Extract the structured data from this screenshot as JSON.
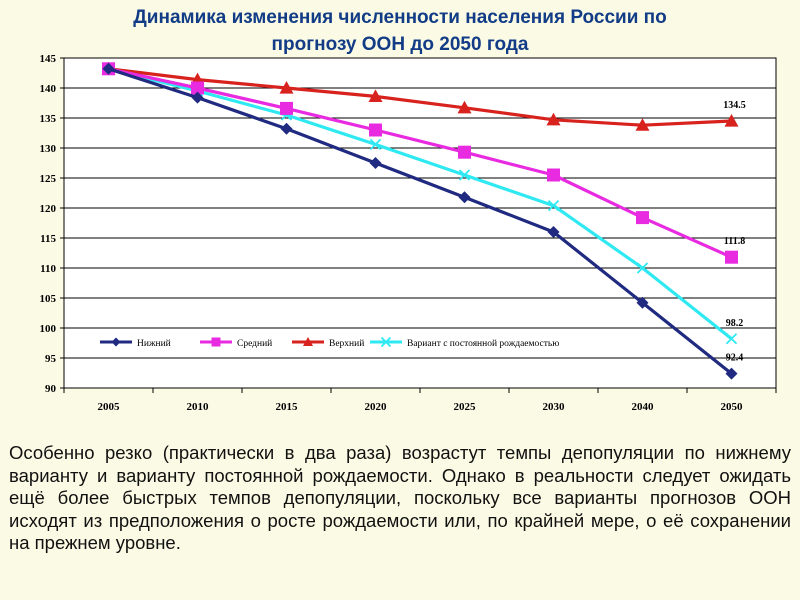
{
  "title": {
    "line1": "Динамика изменения численности населения России по",
    "line2": "прогнозу ООН до 2050 года"
  },
  "chart_data": {
    "type": "line",
    "categories": [
      "2005",
      "2010",
      "2015",
      "2020",
      "2025",
      "2030",
      "2040",
      "2050"
    ],
    "ylim": [
      90,
      145
    ],
    "yticks": [
      90,
      95,
      100,
      105,
      110,
      115,
      120,
      125,
      130,
      135,
      140,
      145
    ],
    "grid": true,
    "legend_position": "inside-bottom",
    "series": [
      {
        "name": "Нижний",
        "color": "#1f2a80",
        "marker": "diamond",
        "values": [
          143.2,
          138.4,
          133.2,
          127.5,
          121.8,
          116.0,
          104.2,
          92.4
        ]
      },
      {
        "name": "Средний",
        "color": "#e82be0",
        "marker": "square",
        "values": [
          143.2,
          140.0,
          136.6,
          133.0,
          129.3,
          125.5,
          118.4,
          111.8
        ]
      },
      {
        "name": "Верхний",
        "color": "#d8221e",
        "marker": "triangle",
        "values": [
          143.2,
          141.4,
          140.0,
          138.6,
          136.7,
          134.7,
          133.8,
          134.5
        ]
      },
      {
        "name": "Вариант с постоянной рождаемостью",
        "color": "#2ee8f2",
        "marker": "x",
        "values": [
          143.2,
          139.5,
          135.5,
          130.6,
          125.5,
          120.4,
          110.0,
          98.2
        ]
      }
    ],
    "annotations": [
      {
        "text": "134.5",
        "series": 2,
        "point": 7
      },
      {
        "text": "111.8",
        "series": 1,
        "point": 7
      },
      {
        "text": "98.2",
        "series": 3,
        "point": 7
      },
      {
        "text": "92.4",
        "series": 0,
        "point": 7
      }
    ]
  },
  "caption": "Особенно резко (практически в два раза) возрастут темпы депопуляции по нижнему варианту и варианту постоянной рождаемости. Однако в реальности следует ожидать ещё более быстрых темпов депопуляции, поскольку все варианты прогнозов ООН исходят из предположения о росте рождаемости или, по крайней мере, о её сохранении на прежнем уровне."
}
